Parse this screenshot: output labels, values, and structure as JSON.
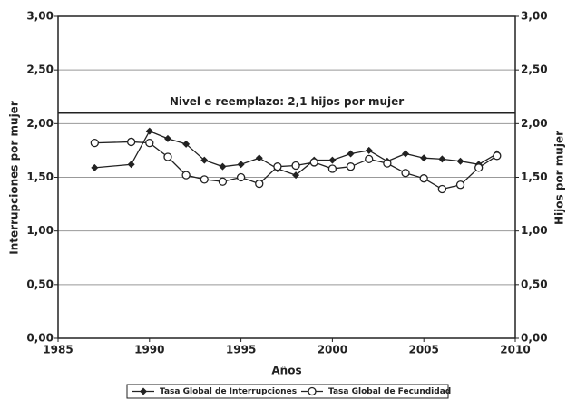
{
  "chart_data": {
    "type": "line",
    "x_label": "Años",
    "y_label": "Interrupciones por mujer",
    "y2_label": "Hijos por mujer",
    "x": [
      1987,
      1989,
      1990,
      1991,
      1992,
      1993,
      1994,
      1995,
      1996,
      1997,
      1998,
      1999,
      2000,
      2001,
      2002,
      2003,
      2004,
      2005,
      2006,
      2007,
      2008,
      2009
    ],
    "series": [
      {
        "name": "Tasa Global de Interrupciones",
        "color": "#222222",
        "marker": "diamond",
        "values": [
          1.59,
          1.62,
          1.93,
          1.86,
          1.81,
          1.66,
          1.6,
          1.62,
          1.68,
          1.58,
          1.52,
          1.66,
          1.66,
          1.72,
          1.75,
          1.65,
          1.72,
          1.68,
          1.67,
          1.65,
          1.62,
          1.72
        ]
      },
      {
        "name": "Tasa Global de Fecundidad",
        "color": "#222222",
        "marker": "circle",
        "axis": "y2",
        "values": [
          1.82,
          1.83,
          1.82,
          1.69,
          1.52,
          1.48,
          1.46,
          1.5,
          1.44,
          1.6,
          1.61,
          1.64,
          1.58,
          1.6,
          1.67,
          1.63,
          1.54,
          1.49,
          1.39,
          1.43,
          1.59,
          1.7
        ]
      }
    ],
    "xlim": [
      1985,
      2010
    ],
    "xticks": [
      1985,
      1990,
      1995,
      2000,
      2005,
      2010
    ],
    "ylim": [
      0,
      3
    ],
    "yticks": [
      {
        "value": 0,
        "label": "0,00"
      },
      {
        "value": 0.5,
        "label": "0,50"
      },
      {
        "value": 1,
        "label": "1,00"
      },
      {
        "value": 1.5,
        "label": "1,50"
      },
      {
        "value": 2,
        "label": "2,00"
      },
      {
        "value": 2.5,
        "label": "2,50"
      },
      {
        "value": 3,
        "label": "3,00"
      }
    ],
    "y2lim": [
      0,
      3
    ],
    "y2ticks": [
      {
        "value": 0,
        "label": "0,00"
      },
      {
        "value": 0.5,
        "label": "0,50"
      },
      {
        "value": 1,
        "label": "1,00"
      },
      {
        "value": 1.5,
        "label": "1,50"
      },
      {
        "value": 2,
        "label": "2,00"
      },
      {
        "value": 2.5,
        "label": "2,50"
      },
      {
        "value": 3,
        "label": "3,00"
      }
    ],
    "reference_line": {
      "value": 2.1,
      "label": "Nivel e reemplazo: 2,1 hijos por mujer"
    },
    "grid": true,
    "grid_color": "#999999",
    "legend": "bottom"
  }
}
